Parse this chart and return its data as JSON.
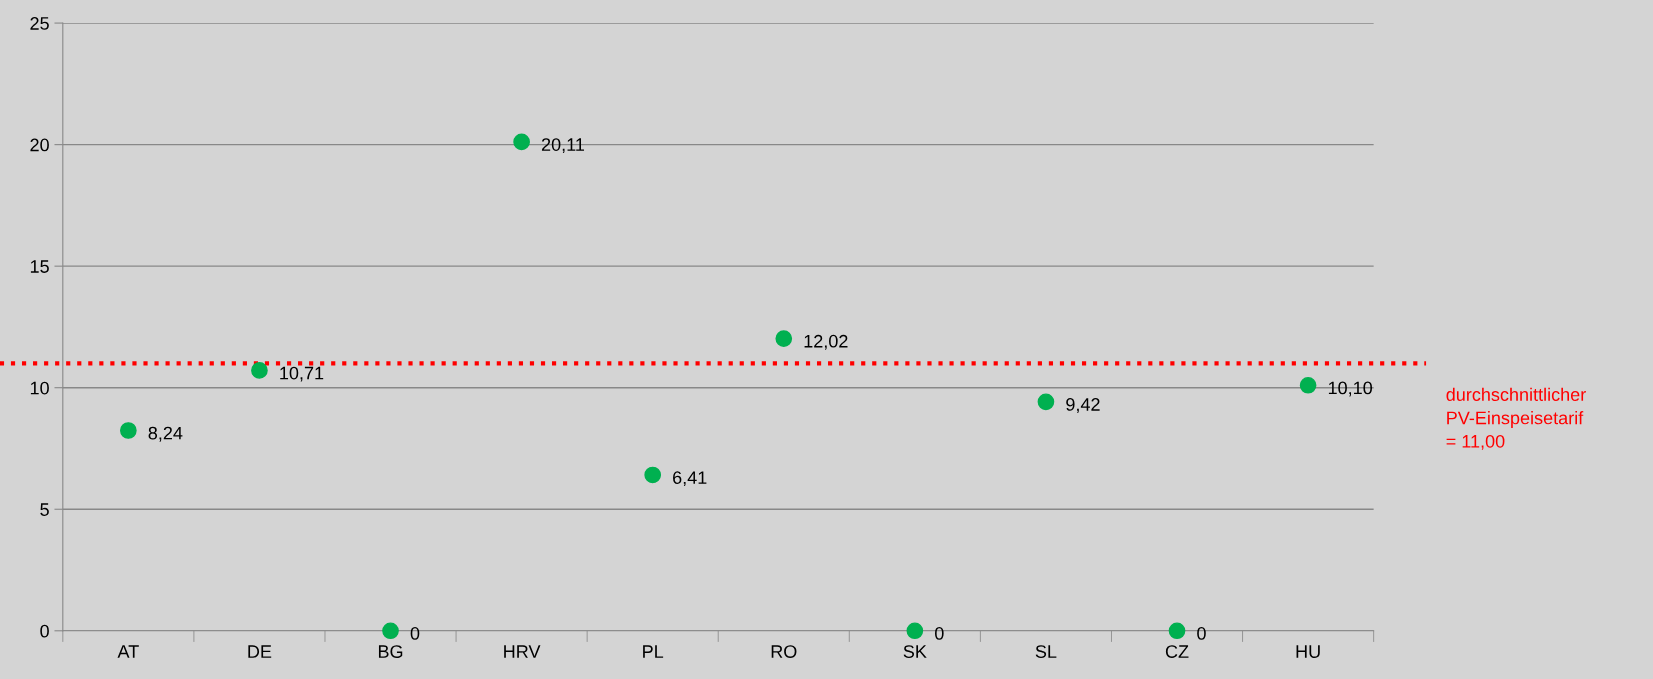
{
  "chart_data": {
    "type": "scatter",
    "categories": [
      "AT",
      "DE",
      "BG",
      "HRV",
      "PL",
      "RO",
      "SK",
      "SL",
      "CZ",
      "HU"
    ],
    "series": [
      {
        "color": "#00b050",
        "values": [
          8.24,
          10.71,
          0,
          20.11,
          6.41,
          12.02,
          0,
          9.42,
          0,
          10.1
        ],
        "value_labels": [
          "8,24",
          "10,71",
          "0",
          "20,11",
          "6,41",
          "12,02",
          "0",
          "9,42",
          "0",
          "10,10"
        ]
      }
    ],
    "ylim": [
      0,
      25
    ],
    "yticks": [
      0,
      5,
      10,
      15,
      20,
      25
    ],
    "grid": "y",
    "marker": "circle",
    "legend": false,
    "ref_lines": [
      {
        "axis": "y",
        "value": 11,
        "label": "durchschnittlicher\nPV-Einspeisetarif\n= 11,00",
        "color": "#ff0000",
        "line_style": "dotted"
      }
    ]
  }
}
